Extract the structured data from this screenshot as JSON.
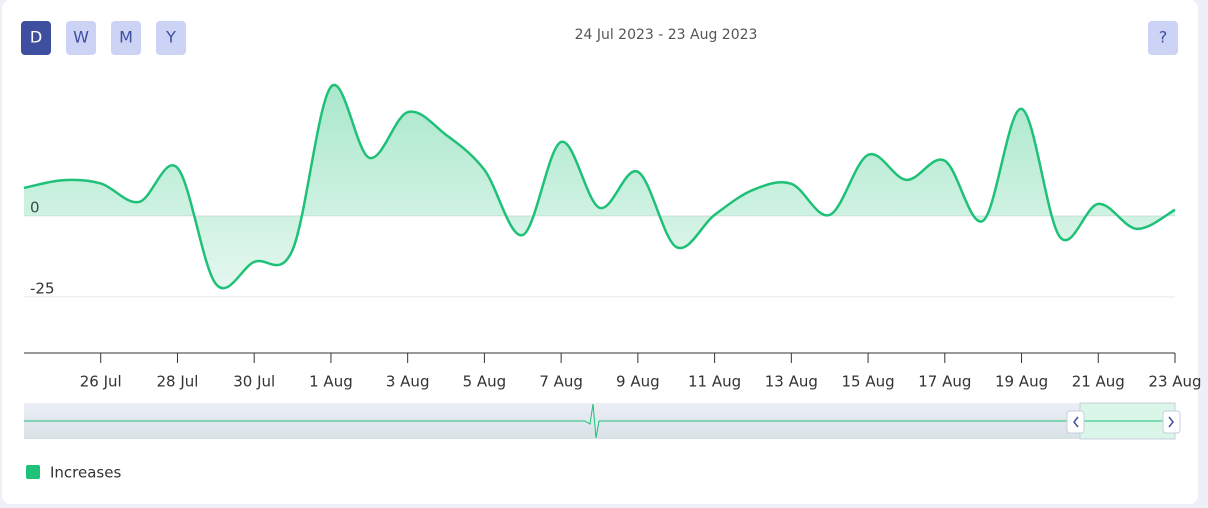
{
  "buttons": [
    "D",
    "W",
    "M",
    "Y"
  ],
  "help": "?",
  "chart_data": {
    "type": "area",
    "subtitle": "24 Jul 2023 - 23 Aug 2023",
    "categories": [
      null,
      null,
      "26 Jul",
      null,
      "28 Jul",
      null,
      "30 Jul",
      null,
      "1 Aug",
      null,
      "3 Aug",
      null,
      "5 Aug",
      null,
      "7 Aug",
      null,
      "9 Aug",
      null,
      "11 Aug",
      null,
      "13 Aug",
      null,
      "15 Aug",
      null,
      "17 Aug",
      null,
      "19 Aug",
      null,
      "21 Aug",
      null,
      "23 Aug"
    ],
    "series": [
      {
        "name": "Increases",
        "color": "#1ec177",
        "values": [
          8.6,
          11,
          10,
          4.3,
          14.8,
          -21,
          -14.2,
          -10.5,
          39.8,
          17.9,
          32,
          25,
          14.2,
          -5.9,
          22.8,
          2.5,
          13.6,
          -9.6,
          0.3,
          8,
          9.9,
          0.3,
          18.8,
          11.1,
          17,
          -1.5,
          33,
          -6.5,
          3.7,
          -4,
          1.9
        ]
      }
    ],
    "ylim": [
      -42,
      45
    ],
    "yticks": [
      -25,
      0
    ],
    "grid": true,
    "legend": "bottom-left"
  }
}
